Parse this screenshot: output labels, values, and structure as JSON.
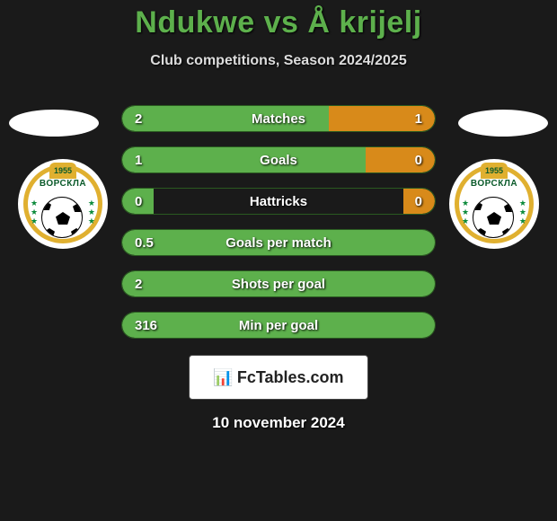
{
  "title": "Ndukwe vs Å krijelj",
  "subtitle": "Club competitions, Season 2024/2025",
  "date": "10 november 2024",
  "footer_brand": "FcTables.com",
  "badge": {
    "club_text": "ВОРСКЛА",
    "year": "1955"
  },
  "colors": {
    "left_fill": "#5db04c",
    "right_fill": "#d88a1a",
    "title": "#5db04c",
    "background": "#1a1a1a"
  },
  "stats": [
    {
      "label": "Matches",
      "left_val": "2",
      "right_val": "1",
      "left_pct": 66,
      "right_pct": 34
    },
    {
      "label": "Goals",
      "left_val": "1",
      "right_val": "0",
      "left_pct": 78,
      "right_pct": 22
    },
    {
      "label": "Hattricks",
      "left_val": "0",
      "right_val": "0",
      "left_pct": 10,
      "right_pct": 10
    },
    {
      "label": "Goals per match",
      "left_val": "0.5",
      "right_val": "",
      "left_pct": 100,
      "right_pct": 0
    },
    {
      "label": "Shots per goal",
      "left_val": "2",
      "right_val": "",
      "left_pct": 100,
      "right_pct": 0
    },
    {
      "label": "Min per goal",
      "left_val": "316",
      "right_val": "",
      "left_pct": 100,
      "right_pct": 0
    }
  ]
}
